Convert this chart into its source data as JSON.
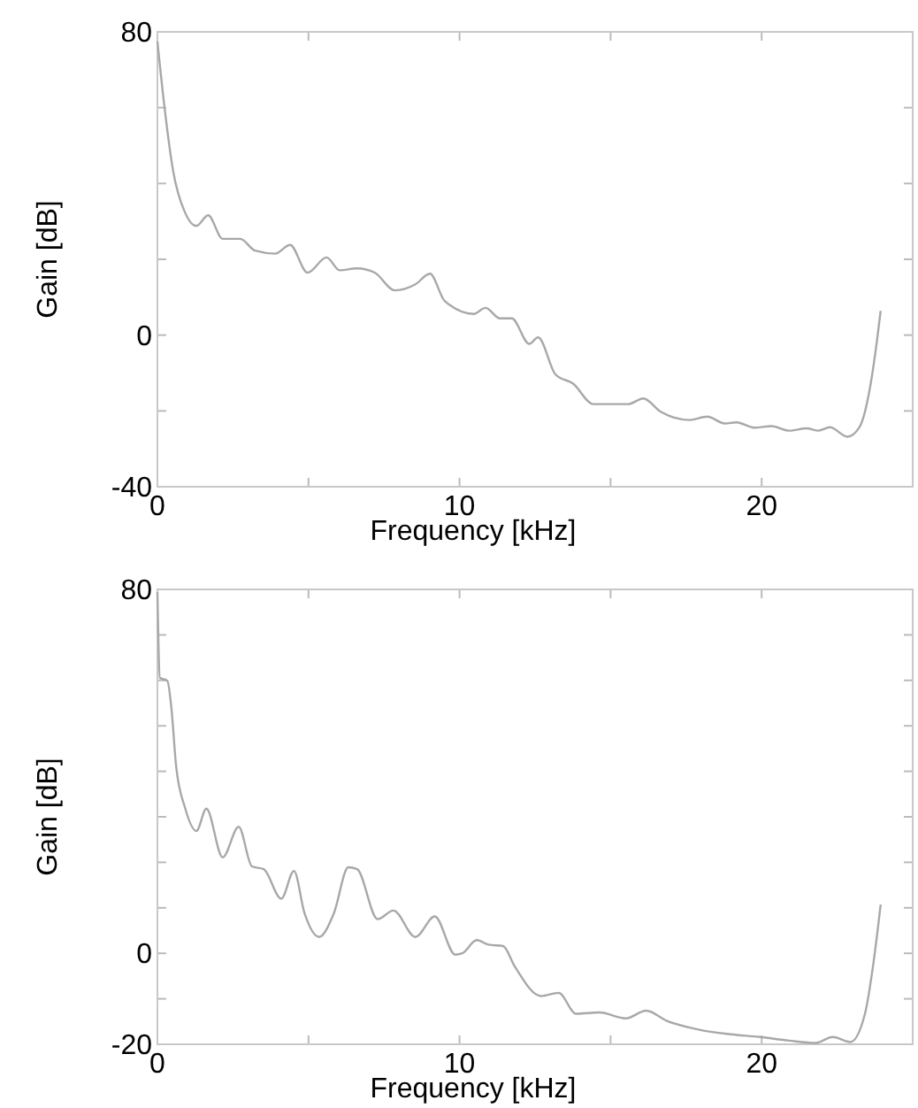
{
  "chart_data": [
    {
      "type": "line",
      "xlabel": "Frequency [kHz]",
      "ylabel": "Gain [dB]",
      "xlim": [
        0,
        25
      ],
      "ylim": [
        -40,
        80
      ],
      "xticks": [
        0,
        {
          "value": 5,
          "label": null
        },
        10,
        {
          "value": 15,
          "label": null
        },
        20,
        {
          "value": 25,
          "label": null
        }
      ],
      "yticks": [
        -40,
        {
          "value": -20,
          "label": null
        },
        0,
        {
          "value": 20,
          "label": null
        },
        {
          "value": 40,
          "label": null
        },
        {
          "value": 60,
          "label": null
        },
        80
      ],
      "series": [
        {
          "color": "#a8a8a8",
          "x": [
            0,
            0.23,
            0.52,
            0.91,
            1.29,
            1.68,
            2.16,
            2.74,
            3.23,
            3.9,
            4.39,
            4.97,
            5.6,
            6.03,
            6.61,
            7.19,
            7.86,
            8.54,
            9.02,
            9.51,
            10.47,
            10.86,
            11.34,
            11.73,
            12.31,
            12.6,
            13.18,
            13.76,
            14.43,
            15.59,
            16.08,
            16.66,
            17.62,
            18.2,
            18.78,
            19.17,
            19.75,
            20.33,
            20.91,
            21.49,
            21.88,
            22.26,
            22.84,
            23.23,
            23.61,
            23.81,
            23.94
          ],
          "values": [
            77.5,
            60.4,
            43.3,
            32.4,
            28.8,
            31.6,
            25.4,
            25.4,
            22.3,
            21.5,
            23.8,
            16.5,
            20.5,
            17.1,
            17.6,
            16.5,
            11.8,
            13.4,
            16.2,
            9.0,
            5.6,
            7.2,
            4.4,
            4.4,
            -2.3,
            -0.6,
            -10.4,
            -12.8,
            -18.2,
            -18.2,
            -16.7,
            -20.2,
            -22.4,
            -21.5,
            -23.3,
            -23.0,
            -24.4,
            -24.0,
            -25.2,
            -24.6,
            -25.2,
            -24.3,
            -26.8,
            -24.4,
            -12.8,
            -1.9,
            6.4
          ]
        }
      ]
    },
    {
      "type": "line",
      "xlabel": "Frequency [kHz]",
      "ylabel": "Gain [dB]",
      "xlim": [
        0,
        25
      ],
      "ylim": [
        -20,
        80
      ],
      "xticks": [
        0,
        {
          "value": 5,
          "label": null
        },
        10,
        {
          "value": 15,
          "label": null
        },
        20,
        {
          "value": 25,
          "label": null
        }
      ],
      "yticks": [
        -20,
        {
          "value": -10,
          "label": null
        },
        0,
        {
          "value": 10,
          "label": null
        },
        {
          "value": 20,
          "label": null
        },
        {
          "value": 30,
          "label": null
        },
        {
          "value": 40,
          "label": null
        },
        {
          "value": 50,
          "label": null
        },
        {
          "value": 60,
          "label": null
        },
        {
          "value": 70,
          "label": null
        },
        80
      ],
      "series": [
        {
          "color": "#a8a8a8",
          "x": [
            0,
            0.08,
            0.33,
            0.46,
            0.62,
            0.91,
            1.29,
            1.62,
            2.16,
            2.69,
            3.13,
            3.52,
            4.1,
            4.52,
            4.87,
            5.35,
            5.84,
            6.32,
            6.61,
            7.29,
            7.81,
            8.54,
            9.18,
            9.86,
            10.09,
            10.57,
            10.96,
            11.44,
            11.83,
            12.7,
            13.28,
            13.86,
            14.63,
            15.5,
            16.18,
            16.85,
            18.01,
            18.98,
            19.94,
            20.91,
            21.78,
            22.36,
            22.94,
            23.42,
            23.71,
            23.94
          ],
          "values": [
            79.4,
            60.6,
            59.9,
            54.1,
            41.1,
            32.1,
            26.9,
            31.8,
            21.1,
            27.8,
            19.1,
            18.5,
            12.0,
            18.1,
            8.8,
            3.6,
            8.8,
            18.9,
            18.5,
            7.5,
            9.4,
            3.6,
            8.1,
            -0.3,
            0,
            2.9,
            1.9,
            1.6,
            -2.9,
            -9.4,
            -8.7,
            -13.3,
            -13.0,
            -14.3,
            -12.6,
            -14.8,
            -16.9,
            -17.8,
            -18.4,
            -19.2,
            -19.7,
            -18.4,
            -19.5,
            -13.3,
            -1.7,
            10.7
          ]
        }
      ]
    }
  ]
}
